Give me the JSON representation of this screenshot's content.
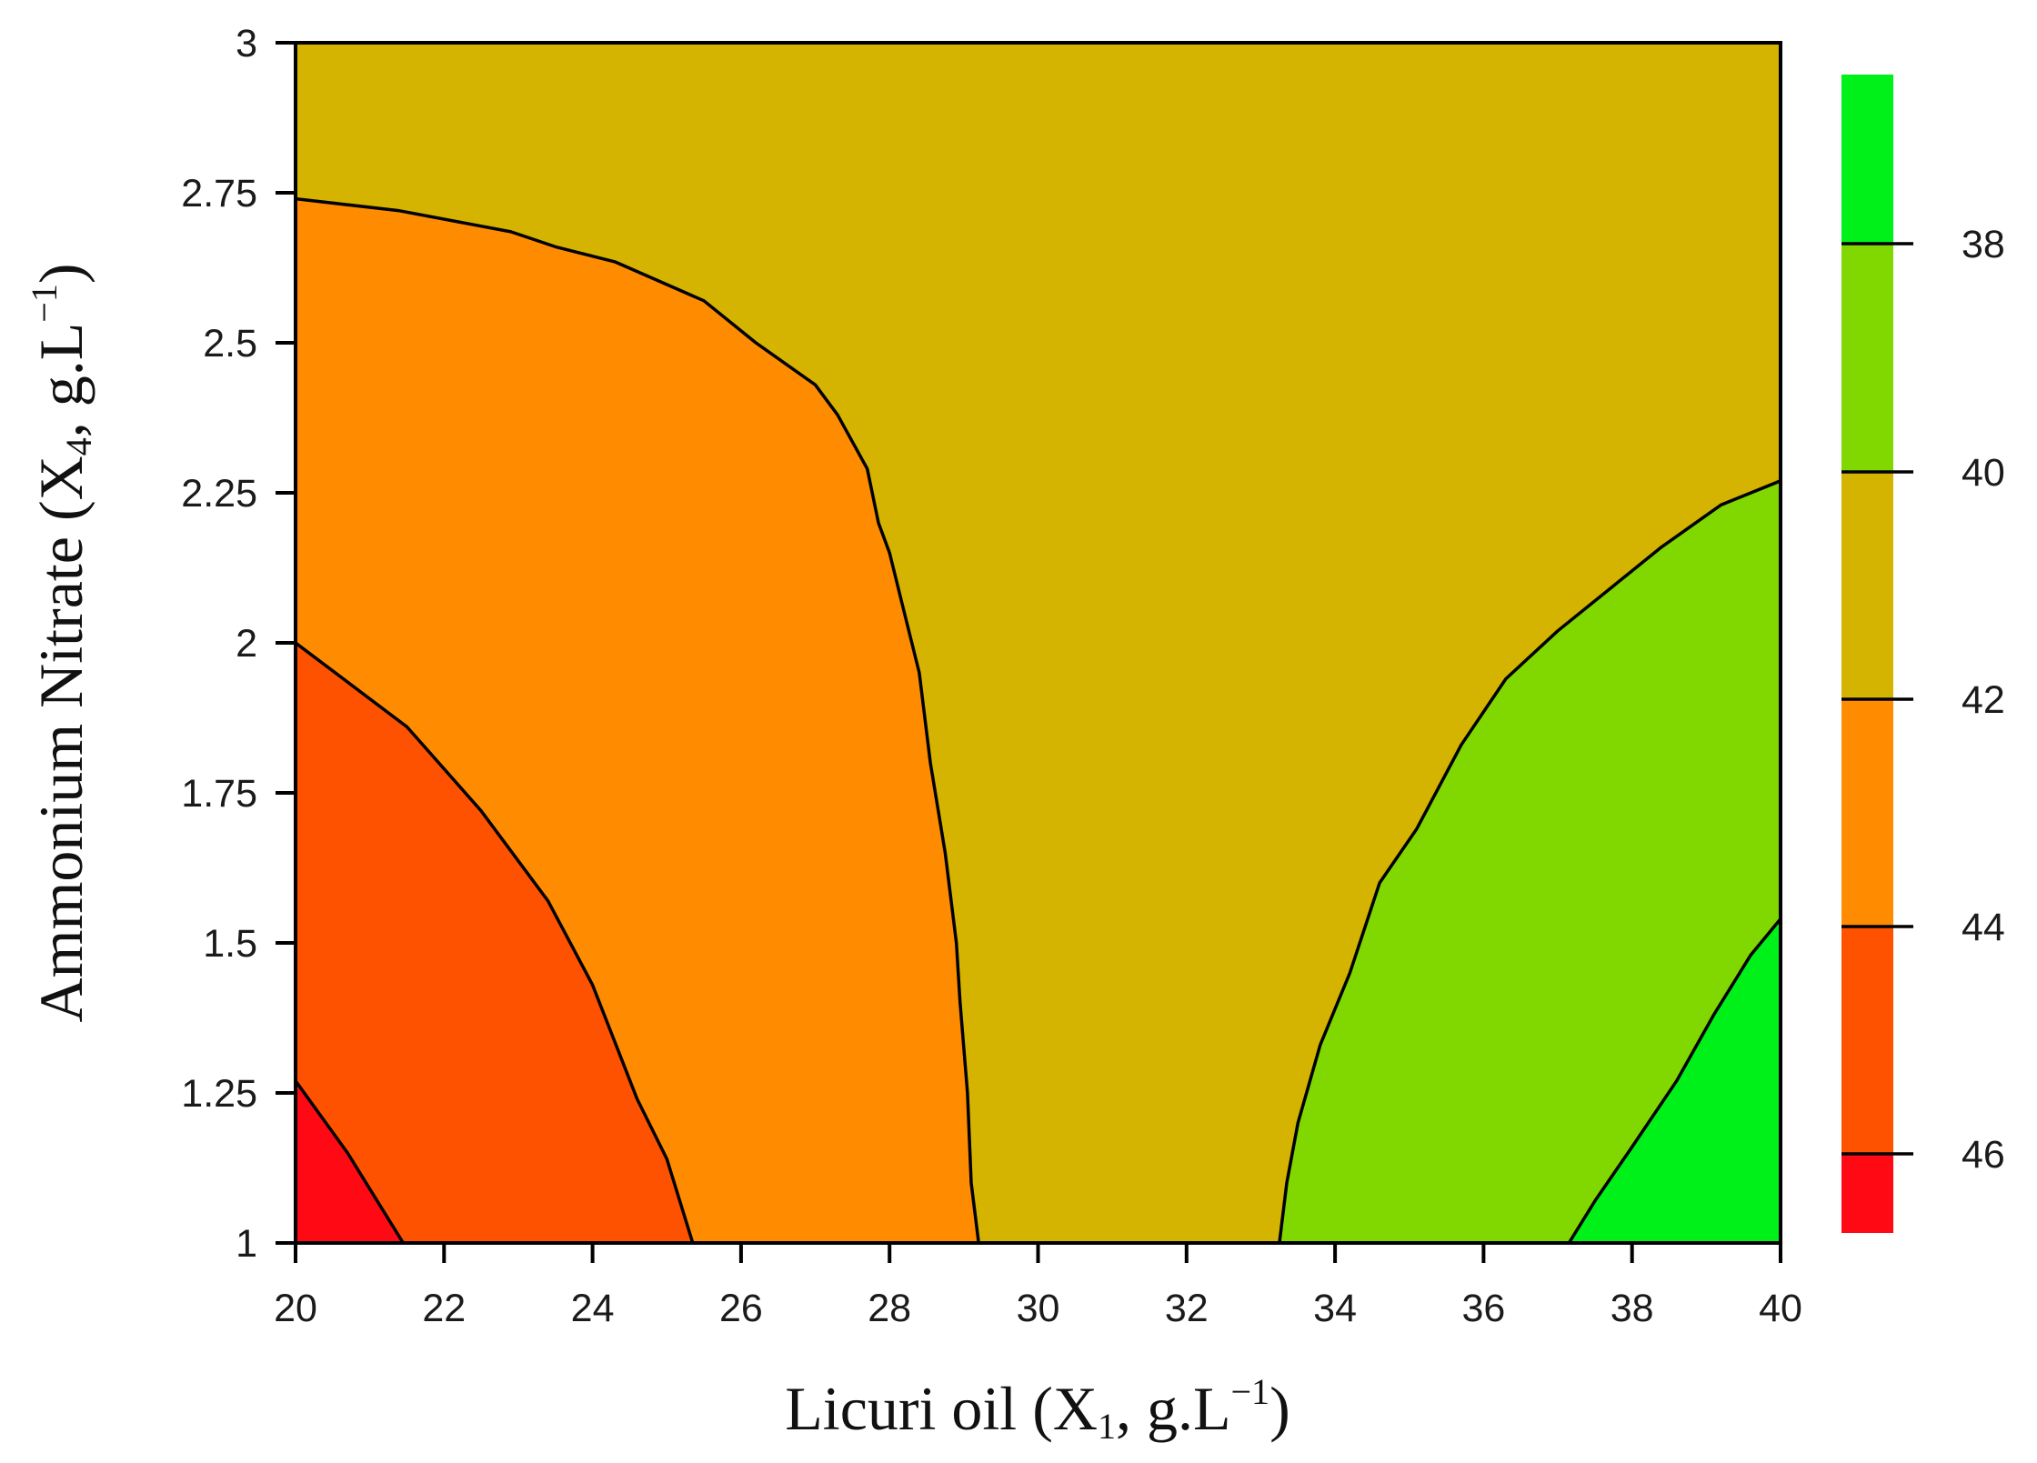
{
  "chart_data": {
    "type": "contour",
    "title": "",
    "xlabel": {
      "prefix": "Licuri oil (X",
      "subscript": "1",
      "middle": ", g.L",
      "superscript": "−1",
      "suffix": ")"
    },
    "ylabel": {
      "prefix": "Ammonium Nitrate (X",
      "subscript": "4",
      "middle": ", g.L",
      "superscript": "−1",
      "suffix": ")"
    },
    "xlim": [
      20,
      40
    ],
    "ylim": [
      1,
      3
    ],
    "x_ticks": [
      "20",
      "22",
      "24",
      "26",
      "28",
      "30",
      "32",
      "34",
      "36",
      "38",
      "40"
    ],
    "y_ticks": [
      "1",
      "1.25",
      "1.5",
      "1.75",
      "2",
      "2.25",
      "2.5",
      "2.75",
      "3"
    ],
    "grid": false,
    "colorbar": {
      "position": "right",
      "labels": [
        "38",
        "40",
        "42",
        "44",
        "46"
      ],
      "bands": [
        {
          "range": "< 38",
          "color": "#00f01a"
        },
        {
          "range": "38–40",
          "color": "#80d800"
        },
        {
          "range": "40–42",
          "color": "#d4b400"
        },
        {
          "range": "42–44",
          "color": "#ff8c00"
        },
        {
          "range": "44–46",
          "color": "#ff5200"
        },
        {
          "range": "> 46",
          "color": "#ff0a14"
        }
      ]
    },
    "regions": [
      {
        "level": "40–42",
        "color": "#d4b400",
        "boundary": [
          [
            20,
            1
          ],
          [
            40,
            1
          ],
          [
            40,
            3
          ],
          [
            20,
            3
          ]
        ]
      },
      {
        "level": "42–44",
        "color": "#ff8c00",
        "boundary": [
          [
            20,
            2.74
          ],
          [
            21.4,
            2.72
          ],
          [
            22.9,
            2.685
          ],
          [
            23.5,
            2.66
          ],
          [
            24.3,
            2.635
          ],
          [
            25.5,
            2.57
          ],
          [
            26.2,
            2.5
          ],
          [
            27,
            2.43
          ],
          [
            27.3,
            2.38
          ],
          [
            27.7,
            2.29
          ],
          [
            27.85,
            2.2
          ],
          [
            28.0,
            2.15
          ],
          [
            28.2,
            2.05
          ],
          [
            28.4,
            1.95
          ],
          [
            28.55,
            1.8
          ],
          [
            28.75,
            1.65
          ],
          [
            28.9,
            1.5
          ],
          [
            28.95,
            1.4
          ],
          [
            29.05,
            1.25
          ],
          [
            29.1,
            1.1
          ],
          [
            29.2,
            1
          ],
          [
            20,
            1
          ]
        ]
      },
      {
        "level": "44–46",
        "color": "#ff5200",
        "boundary": [
          [
            20,
            2.0
          ],
          [
            21.5,
            1.86
          ],
          [
            22.5,
            1.72
          ],
          [
            23.4,
            1.57
          ],
          [
            24.0,
            1.43
          ],
          [
            24.6,
            1.24
          ],
          [
            25.0,
            1.14
          ],
          [
            25.35,
            1
          ],
          [
            20,
            1
          ]
        ]
      },
      {
        "level": "> 46",
        "color": "#ff0a14",
        "boundary": [
          [
            20,
            1.27
          ],
          [
            20.7,
            1.15
          ],
          [
            21.1,
            1.07
          ],
          [
            21.45,
            1
          ],
          [
            20,
            1
          ]
        ]
      },
      {
        "level": "38–40",
        "color": "#80d800",
        "boundary": [
          [
            40,
            2.27
          ],
          [
            39.2,
            2.23
          ],
          [
            38.4,
            2.16
          ],
          [
            37.7,
            2.09
          ],
          [
            37.0,
            2.02
          ],
          [
            36.3,
            1.94
          ],
          [
            35.7,
            1.83
          ],
          [
            35.1,
            1.69
          ],
          [
            34.6,
            1.6
          ],
          [
            34.2,
            1.45
          ],
          [
            33.8,
            1.33
          ],
          [
            33.5,
            1.2
          ],
          [
            33.35,
            1.1
          ],
          [
            33.25,
            1
          ],
          [
            40,
            1
          ]
        ]
      },
      {
        "level": "< 38",
        "color": "#00f01a",
        "boundary": [
          [
            40,
            1.54
          ],
          [
            39.6,
            1.48
          ],
          [
            39.1,
            1.38
          ],
          [
            38.6,
            1.27
          ],
          [
            38.0,
            1.16
          ],
          [
            37.5,
            1.07
          ],
          [
            37.15,
            1
          ],
          [
            40,
            1
          ]
        ]
      }
    ]
  }
}
